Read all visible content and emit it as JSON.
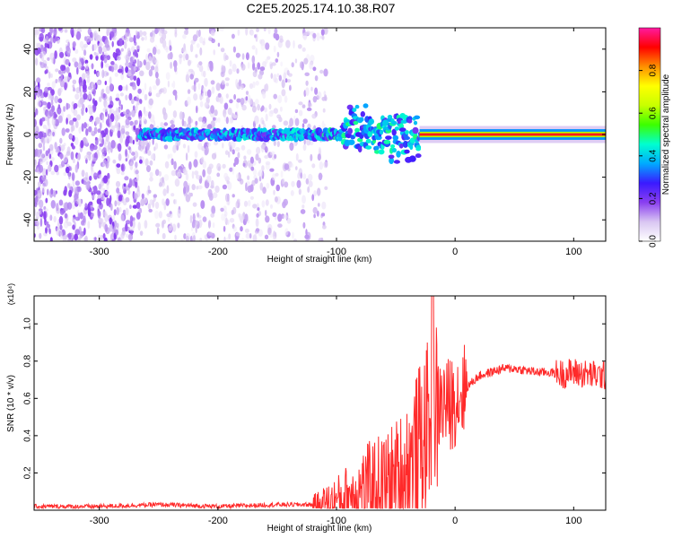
{
  "title": "C2E5.2025.174.10.38.R07",
  "colors": {
    "snr_line": "#ff2a2a",
    "axis": "#000000",
    "signal_band": "#ff1a1a"
  },
  "chart_data": [
    {
      "type": "heatmap",
      "title": "C2E5.2025.174.10.38.R07",
      "xlabel": "Height of straight line (km)",
      "ylabel": "Frequency (Hz)",
      "xlim": [
        -355,
        127
      ],
      "ylim": [
        -50,
        50
      ],
      "xticks": [
        -300,
        -200,
        -100,
        0,
        100
      ],
      "yticks": [
        -40,
        -20,
        0,
        20,
        40
      ],
      "colorbar": {
        "label": "Normalized spectral amplitude",
        "range": [
          0,
          1
        ],
        "ticks": [
          "0.0",
          "0.2",
          "0.4",
          "0.6",
          "0.8"
        ],
        "colormap": [
          "#ffffff",
          "#d9c6f2",
          "#8a3ff0",
          "#3a1aff",
          "#00aaff",
          "#00ffd0",
          "#3cff00",
          "#c8ff00",
          "#ffff00",
          "#ff9000",
          "#ff0000",
          "#ff1aa0"
        ]
      },
      "features": [
        {
          "name": "noise",
          "x": [
            -355,
            -120
          ],
          "freq": [
            -50,
            50
          ],
          "amplitude": 0.15
        },
        {
          "name": "signal",
          "x": [
            -265,
            127
          ],
          "freq_center": 0,
          "amplitude_end": 1.0
        }
      ]
    },
    {
      "type": "line",
      "title": "",
      "xlabel": "Height of straight line (km)",
      "ylabel": "SNR (10 * v/v)",
      "scale_label": "(x10⁴)",
      "xlim": [
        -355,
        127
      ],
      "ylim": [
        0,
        1.15
      ],
      "xticks": [
        -300,
        -200,
        -100,
        0,
        100
      ],
      "yticks": [
        "0.2",
        "0.4",
        "0.6",
        "0.8",
        "1.0"
      ],
      "series": [
        {
          "name": "",
          "x": [
            -355,
            -300,
            -250,
            -200,
            -150,
            -120,
            -100,
            -90,
            -80,
            -70,
            -60,
            -50,
            -40,
            -35,
            -30,
            -25,
            -20,
            -15,
            -10,
            -5,
            0,
            10,
            20,
            30,
            40,
            50,
            60,
            70,
            80,
            90,
            100,
            110,
            127
          ],
          "y": [
            0.02,
            0.02,
            0.03,
            0.02,
            0.03,
            0.03,
            0.05,
            0.08,
            0.1,
            0.13,
            0.12,
            0.15,
            0.22,
            0.28,
            0.36,
            0.42,
            0.5,
            0.55,
            0.58,
            0.56,
            0.6,
            0.66,
            0.72,
            0.74,
            0.76,
            0.76,
            0.75,
            0.74,
            0.74,
            0.73,
            0.74,
            0.73,
            0.72
          ]
        }
      ]
    }
  ]
}
